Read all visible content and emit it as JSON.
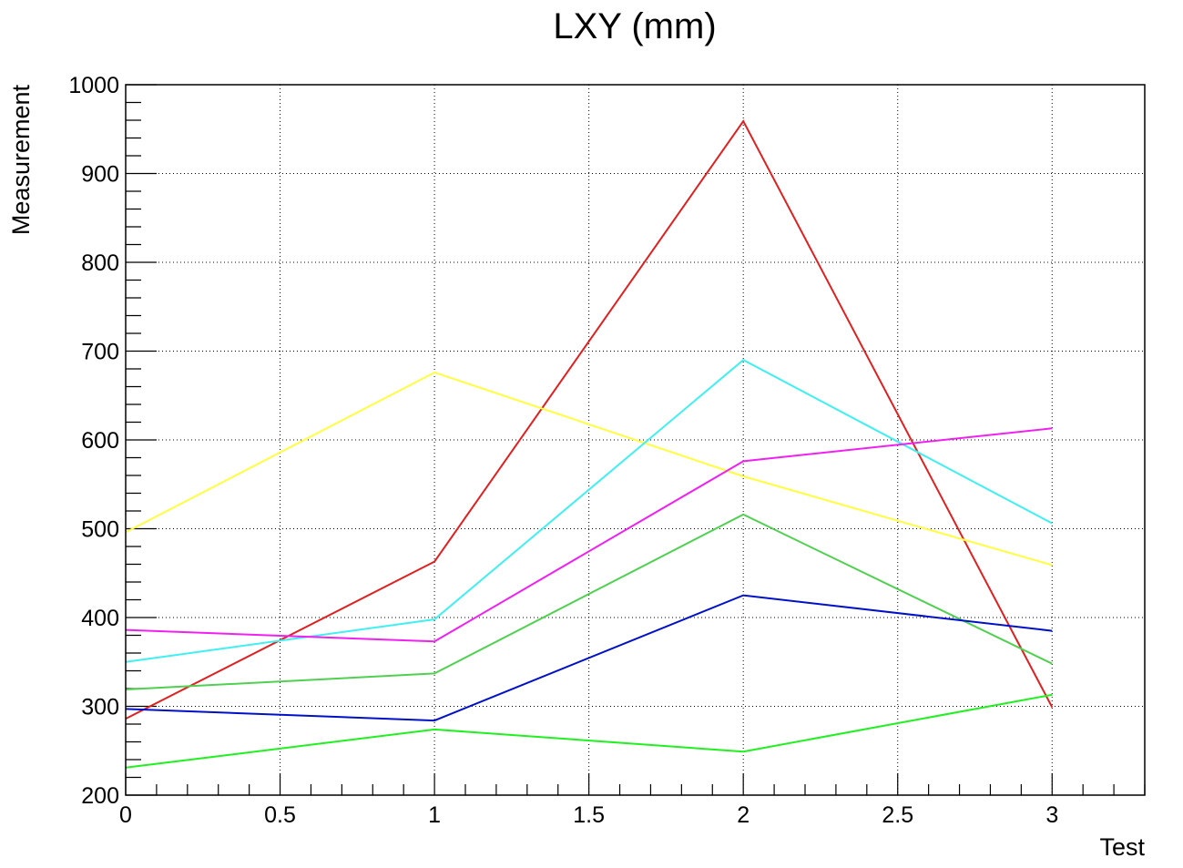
{
  "chart_data": {
    "type": "line",
    "title": "LXY (mm)",
    "xlabel": "Test",
    "ylabel": "Measurement",
    "xlim": [
      0,
      3.3
    ],
    "ylim": [
      200,
      1000
    ],
    "grid": true,
    "x_ticks": [
      0,
      0.5,
      1,
      1.5,
      2,
      2.5,
      3
    ],
    "x_tick_labels": [
      "0",
      "0.5",
      "1",
      "1.5",
      "2",
      "2.5",
      "3"
    ],
    "y_ticks": [
      200,
      300,
      400,
      500,
      600,
      700,
      800,
      900,
      1000
    ],
    "y_tick_labels": [
      "200",
      "300",
      "400",
      "500",
      "600",
      "700",
      "800",
      "900",
      "1000"
    ],
    "x": [
      0,
      1,
      2,
      3
    ],
    "series": [
      {
        "color": "#e02020",
        "values": [
          286,
          463,
          959,
          299
        ]
      },
      {
        "color": "#ffff40",
        "values": [
          496,
          676,
          559,
          459
        ]
      },
      {
        "color": "#40f0f0",
        "values": [
          350,
          398,
          690,
          506
        ]
      },
      {
        "color": "#f020f0",
        "values": [
          386,
          373,
          576,
          613
        ]
      },
      {
        "color": "#50d050",
        "values": [
          319,
          337,
          516,
          348
        ]
      },
      {
        "color": "#0010c8",
        "values": [
          297,
          284,
          425,
          385
        ]
      },
      {
        "color": "#20f020",
        "values": [
          231,
          274,
          249,
          313
        ]
      }
    ]
  }
}
